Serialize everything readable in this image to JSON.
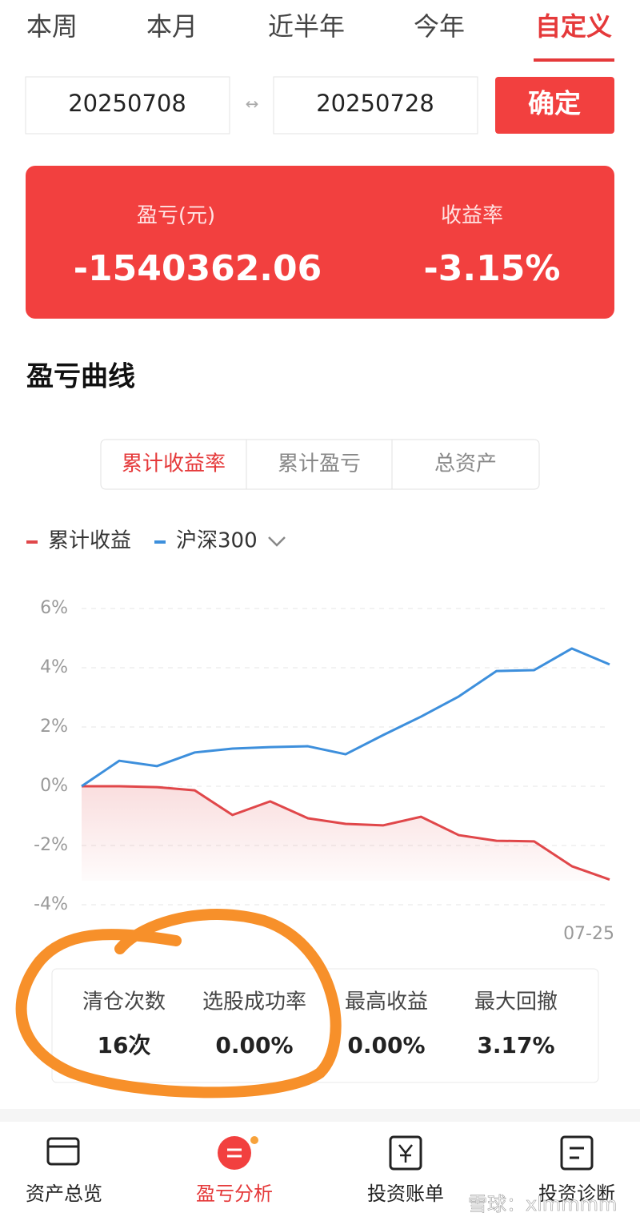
{
  "tabs": [
    "本周",
    "本月",
    "近半年",
    "今年",
    "自定义"
  ],
  "date_range": {
    "start": "20250708",
    "separator": "↔",
    "end": "20250728",
    "confirm": "确定"
  },
  "summary": {
    "pnl_label": "盈亏(元)",
    "pnl": "-1540362.06",
    "return_label": "收益率",
    "return": "-3.15%"
  },
  "section_title": "盈亏曲线",
  "segments": [
    "累计收益率",
    "累计盈亏",
    "总资产"
  ],
  "chart_data": {
    "type": "line",
    "categories": [
      null,
      null,
      null,
      null,
      null,
      null,
      null,
      null,
      null,
      null,
      null,
      null,
      null,
      null,
      "07-25"
    ],
    "series": [
      {
        "name": "累计收益",
        "color": "#e0474a",
        "values": [
          0,
          0,
          -0.03,
          -0.14,
          -0.97,
          -0.51,
          -1.08,
          -1.27,
          -1.32,
          -1.03,
          -1.65,
          -1.84,
          -1.86,
          -2.7,
          -3.15
        ]
      },
      {
        "name": "沪深300",
        "color": "#3d8fdc",
        "values": [
          0,
          0.86,
          0.68,
          1.14,
          1.27,
          1.32,
          1.35,
          1.08,
          1.73,
          2.35,
          3.03,
          3.89,
          3.92,
          4.65,
          4.11
        ]
      }
    ],
    "ylim": [
      -4,
      6
    ],
    "yticks": [
      {
        "value": 6,
        "label": "6%"
      },
      {
        "value": 4,
        "label": "4%"
      },
      {
        "value": 2,
        "label": "2%"
      },
      {
        "value": 0,
        "label": "0%"
      },
      {
        "value": -2,
        "label": "-2%"
      },
      {
        "value": -4,
        "label": "-4%"
      }
    ],
    "grid": true
  },
  "stats": [
    {
      "label": "清仓次数",
      "value": "16次"
    },
    {
      "label": "选股成功率",
      "value": "0.00%"
    },
    {
      "label": "最高收益",
      "value": "0.00%"
    },
    {
      "label": "最大回撤",
      "value": "3.17%"
    }
  ],
  "nav": [
    "资产总览",
    "盈亏分析",
    "投资账单",
    "投资诊断"
  ],
  "watermark": "雪球：xlmmmm"
}
